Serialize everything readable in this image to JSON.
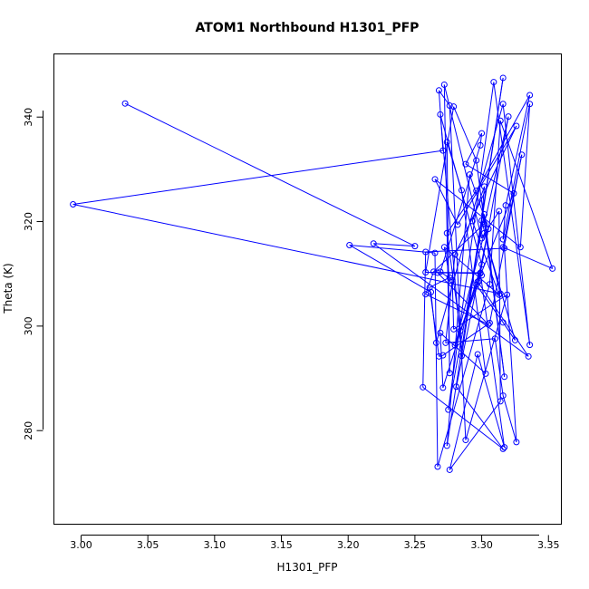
{
  "chart_data": {
    "type": "line",
    "title": "ATOM1 Northbound H1301_PFP",
    "xlabel": "H1301_PFP",
    "ylabel": "Theta (K)",
    "xlim": [
      2.98,
      3.36
    ],
    "ylim": [
      262,
      352
    ],
    "xticks": [
      3.0,
      3.05,
      3.1,
      3.15,
      3.2,
      3.25,
      3.3,
      3.35
    ],
    "xtick_labels": [
      "3.00",
      "3.05",
      "3.10",
      "3.15",
      "3.20",
      "3.25",
      "3.30",
      "3.35"
    ],
    "yticks": [
      280,
      300,
      320,
      340
    ],
    "ytick_labels": [
      "280",
      "300",
      "320",
      "340"
    ],
    "grid": false,
    "series": [
      {
        "color": "#0000ff",
        "marker": "open-circle",
        "points": [
          [
            3.033,
            342.6
          ],
          [
            3.25,
            315.3
          ],
          [
            3.219,
            315.8
          ],
          [
            3.335,
            294.2
          ],
          [
            3.297,
            308.5
          ],
          [
            3.324,
            325.4
          ],
          [
            3.288,
            331.0
          ],
          [
            3.3,
            336.9
          ],
          [
            3.299,
            334.6
          ],
          [
            3.269,
            310.4
          ],
          [
            3.278,
            308.8
          ],
          [
            3.279,
            299.4
          ],
          [
            3.319,
            306.0
          ],
          [
            3.288,
            278.2
          ],
          [
            3.276,
            342.2
          ],
          [
            3.268,
            345.1
          ],
          [
            3.271,
            333.6
          ],
          [
            2.994,
            323.3
          ],
          [
            3.314,
            306.2
          ],
          [
            3.3,
            320.2
          ],
          [
            3.302,
            326.7
          ],
          [
            3.293,
            320.1
          ],
          [
            3.313,
            306.0
          ],
          [
            3.272,
            315.1
          ],
          [
            3.276,
            309.3
          ],
          [
            3.261,
            307.4
          ],
          [
            3.268,
            294.2
          ],
          [
            3.271,
            294.4
          ],
          [
            3.306,
            300.6
          ],
          [
            3.33,
            332.8
          ],
          [
            3.316,
            315.1
          ],
          [
            3.353,
            311.0
          ],
          [
            3.314,
            339.3
          ],
          [
            3.306,
            308.0
          ],
          [
            3.267,
            273.1
          ],
          [
            3.265,
            314.0
          ],
          [
            3.201,
            315.5
          ],
          [
            3.262,
            306.5
          ],
          [
            3.266,
            296.8
          ],
          [
            3.316,
            342.5
          ],
          [
            3.336,
            296.4
          ],
          [
            3.309,
            346.7
          ],
          [
            3.275,
            284.0
          ],
          [
            3.302,
            321.4
          ],
          [
            3.317,
            290.3
          ],
          [
            3.296,
            331.7
          ],
          [
            3.279,
            342.0
          ],
          [
            3.258,
            310.3
          ],
          [
            3.299,
            310.2
          ],
          [
            3.317,
            276.8
          ],
          [
            3.297,
            294.6
          ],
          [
            3.276,
            272.5
          ],
          [
            3.314,
            285.6
          ],
          [
            3.313,
            322.0
          ],
          [
            3.3,
            316.8
          ],
          [
            3.272,
            346.2
          ],
          [
            3.276,
            291.0
          ],
          [
            3.274,
            335.2
          ],
          [
            3.285,
            326.0
          ],
          [
            3.303,
            290.9
          ],
          [
            3.269,
            298.7
          ],
          [
            3.271,
            288.2
          ],
          [
            3.3,
            311.8
          ],
          [
            3.269,
            340.5
          ],
          [
            3.285,
            294.3
          ],
          [
            3.316,
            347.5
          ],
          [
            3.274,
            277.1
          ],
          [
            3.291,
            329.0
          ],
          [
            3.305,
            318.6
          ],
          [
            3.281,
            288.4
          ],
          [
            3.316,
            276.5
          ],
          [
            3.256,
            288.3
          ],
          [
            3.258,
            314.2
          ],
          [
            3.317,
            314.9
          ],
          [
            3.326,
            277.8
          ],
          [
            3.316,
            286.7
          ],
          [
            3.31,
            297.6
          ],
          [
            3.273,
            296.8
          ],
          [
            3.28,
            313.7
          ],
          [
            3.326,
            338.3
          ],
          [
            3.282,
            319.4
          ],
          [
            3.265,
            328.1
          ],
          [
            3.329,
            315.1
          ],
          [
            3.336,
            342.5
          ],
          [
            3.316,
            316.6
          ],
          [
            3.318,
            323.1
          ],
          [
            3.336,
            344.2
          ],
          [
            3.296,
            325.9
          ],
          [
            3.274,
            317.8
          ],
          [
            3.284,
            299.1
          ],
          [
            3.296,
            307.9
          ],
          [
            3.316,
            300.7
          ],
          [
            3.325,
            297.3
          ],
          [
            3.302,
            317.8
          ],
          [
            3.28,
            296.3
          ],
          [
            3.298,
            308.6
          ],
          [
            3.32,
            340.1
          ],
          [
            3.302,
            319.6
          ],
          [
            3.264,
            310.4
          ],
          [
            3.258,
            306.1
          ],
          [
            3.305,
            300.3
          ],
          [
            3.267,
            310.2
          ],
          [
            3.299,
            310.1
          ],
          [
            3.3,
            309.7
          ]
        ]
      }
    ]
  }
}
